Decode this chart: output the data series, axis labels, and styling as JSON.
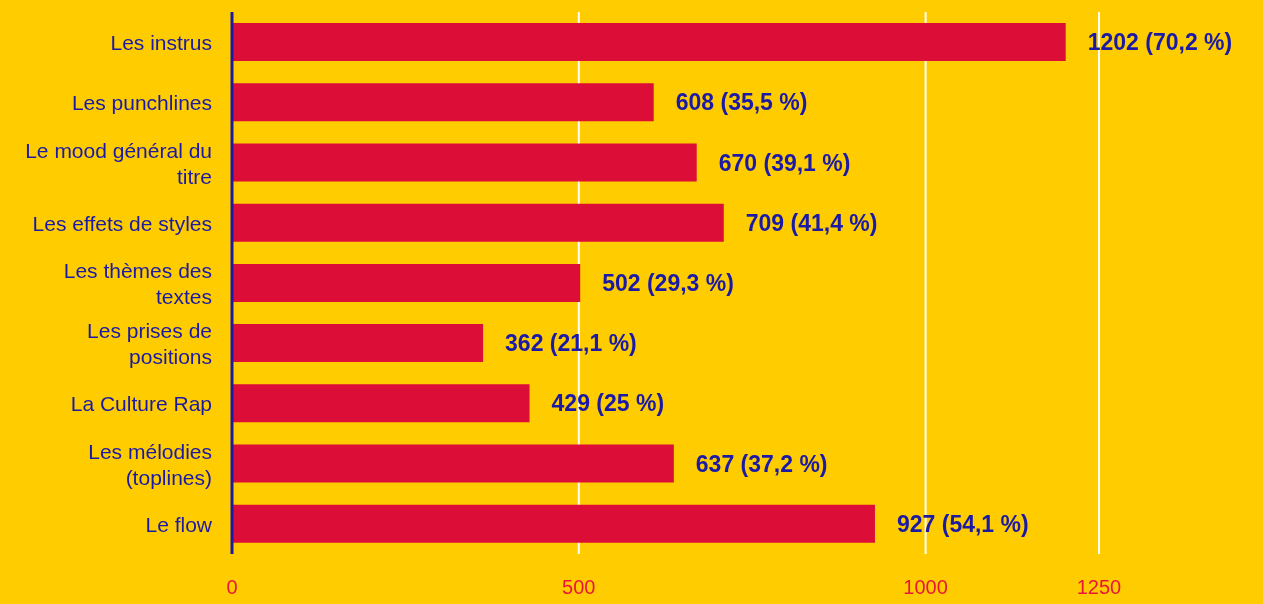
{
  "chart_data": {
    "type": "bar",
    "orientation": "horizontal",
    "categories": [
      "Les instrus",
      "Les punchlines",
      "Le mood général du titre",
      "Les effets de styles",
      "Les thèmes des textes",
      "Les prises de positions",
      "La Culture Rap",
      "Les mélodies (toplines)",
      "Le flow"
    ],
    "values": [
      1202,
      608,
      670,
      709,
      502,
      362,
      429,
      637,
      927
    ],
    "value_labels": [
      "1202 (70,2 %)",
      "608 (35,5 %)",
      "670 (39,1 %)",
      "709 (41,4 %)",
      "502 (29,3 %)",
      "362 (21,1 %)",
      "429 (25 %)",
      "637 (37,2 %)",
      "927 (54,1 %)"
    ],
    "color": "#dc0d37",
    "xlim": [
      0,
      1250
    ],
    "xticks": [
      0,
      500,
      1000,
      1250
    ],
    "grid": "x"
  }
}
